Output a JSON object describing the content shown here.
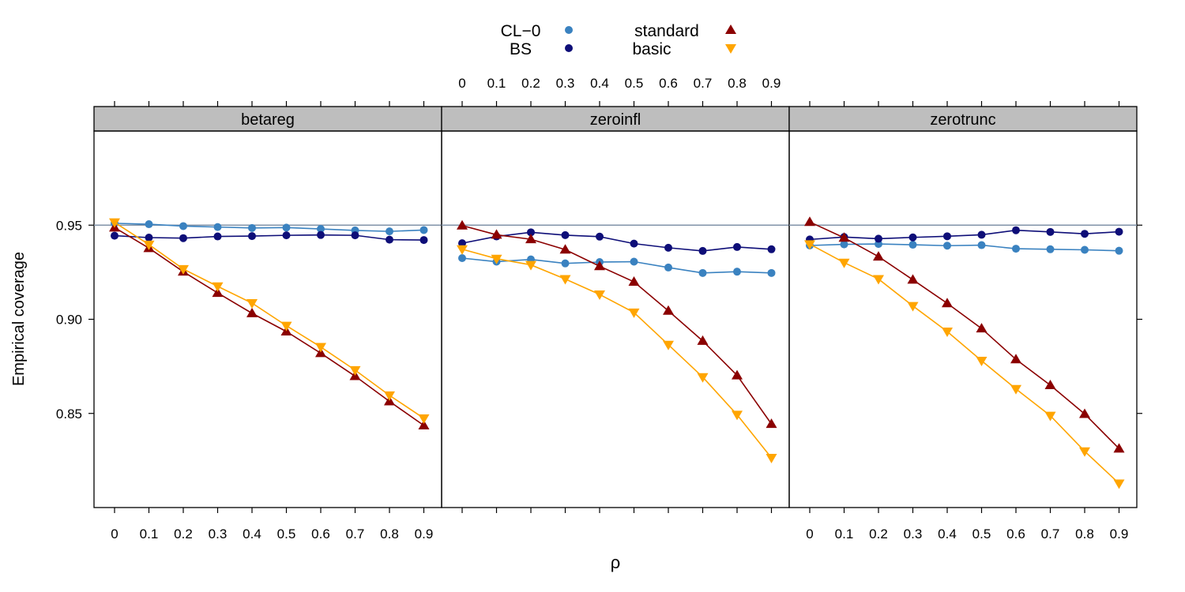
{
  "chart_data": {
    "type": "line",
    "xlabel": "ρ",
    "ylabel": "Empirical coverage",
    "x": [
      0,
      0.1,
      0.2,
      0.3,
      0.4,
      0.5,
      0.6,
      0.7,
      0.8,
      0.9
    ],
    "x_tick_labels": [
      "0",
      "0.1",
      "0.2",
      "0.3",
      "0.4",
      "0.5",
      "0.6",
      "0.7",
      "0.8",
      "0.9"
    ],
    "ylim": [
      0.8,
      1.0
    ],
    "y_ticks": [
      0.85,
      0.9,
      0.95
    ],
    "y_tick_labels": [
      "0.85",
      "0.90",
      "0.95"
    ],
    "reference_line": 0.95,
    "grid": false,
    "legend_position": "top",
    "legend": [
      {
        "label": "CL−0",
        "key": "cl0"
      },
      {
        "label": "BS",
        "key": "bs"
      },
      {
        "label": "standard",
        "key": "standard"
      },
      {
        "label": "basic",
        "key": "basic"
      }
    ],
    "series_styles": {
      "cl0": {
        "color": "#3A82C0",
        "marker": "circle"
      },
      "bs": {
        "color": "#0E0E78",
        "marker": "circle"
      },
      "standard": {
        "color": "#8B0000",
        "marker": "triangle-up"
      },
      "basic": {
        "color": "#FFA500",
        "marker": "triangle-down"
      }
    },
    "panels": [
      {
        "title": "betareg",
        "series": [
          {
            "name": "CL−0",
            "key": "cl0",
            "values": [
              0.951,
              0.9505,
              0.9495,
              0.949,
              0.9485,
              0.9487,
              0.948,
              0.9472,
              0.9467,
              0.9474
            ]
          },
          {
            "name": "BS",
            "key": "bs",
            "values": [
              0.9444,
              0.9434,
              0.9431,
              0.944,
              0.9442,
              0.9446,
              0.9448,
              0.9446,
              0.9423,
              0.9421
            ]
          },
          {
            "name": "standard",
            "key": "standard",
            "values": [
              0.9487,
              0.9378,
              0.9253,
              0.914,
              0.9032,
              0.8935,
              0.882,
              0.8698,
              0.8564,
              0.8436
            ]
          },
          {
            "name": "basic",
            "key": "basic",
            "values": [
              0.9515,
              0.9397,
              0.9267,
              0.9175,
              0.9086,
              0.8966,
              0.8853,
              0.873,
              0.8596,
              0.8474
            ]
          }
        ]
      },
      {
        "title": "zeroinfl",
        "series": [
          {
            "name": "CL−0",
            "key": "cl0",
            "values": [
              0.9325,
              0.9306,
              0.9318,
              0.9297,
              0.9304,
              0.9306,
              0.9275,
              0.9246,
              0.9253,
              0.9246
            ]
          },
          {
            "name": "BS",
            "key": "bs",
            "values": [
              0.9404,
              0.944,
              0.9462,
              0.9447,
              0.9439,
              0.9402,
              0.938,
              0.9363,
              0.9384,
              0.9372
            ]
          },
          {
            "name": "standard",
            "key": "standard",
            "values": [
              0.9498,
              0.9449,
              0.9425,
              0.937,
              0.9282,
              0.9199,
              0.9045,
              0.8885,
              0.8702,
              0.8444
            ]
          },
          {
            "name": "basic",
            "key": "basic",
            "values": [
              0.9372,
              0.9322,
              0.9289,
              0.9214,
              0.9132,
              0.9036,
              0.8865,
              0.8693,
              0.8493,
              0.8264
            ]
          }
        ]
      },
      {
        "title": "zerotrunc",
        "series": [
          {
            "name": "CL−0",
            "key": "cl0",
            "values": [
              0.9392,
              0.9398,
              0.94,
              0.9396,
              0.9391,
              0.9394,
              0.9375,
              0.9372,
              0.9369,
              0.9364
            ]
          },
          {
            "name": "BS",
            "key": "bs",
            "values": [
              0.9424,
              0.9437,
              0.9428,
              0.9435,
              0.9441,
              0.9449,
              0.9473,
              0.9464,
              0.9454,
              0.9465
            ]
          },
          {
            "name": "standard",
            "key": "standard",
            "values": [
              0.9517,
              0.9433,
              0.9333,
              0.921,
              0.9085,
              0.8951,
              0.8787,
              0.865,
              0.8497,
              0.8313
            ]
          },
          {
            "name": "basic",
            "key": "basic",
            "values": [
              0.9399,
              0.9301,
              0.9214,
              0.9071,
              0.8935,
              0.878,
              0.863,
              0.8488,
              0.8299,
              0.8128
            ]
          }
        ]
      }
    ]
  }
}
